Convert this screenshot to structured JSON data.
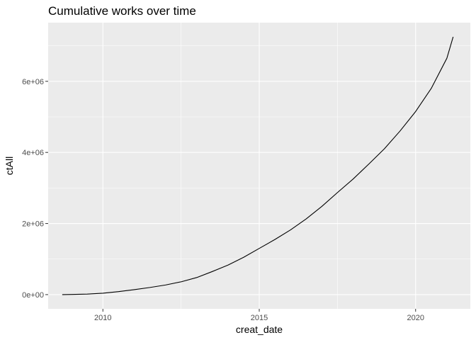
{
  "chart_data": {
    "type": "line",
    "title": "Cumulative works over time",
    "xlabel": "creat_date",
    "ylabel": "ctAll",
    "xlim": [
      2008.25,
      2021.75
    ],
    "ylim": [
      -400000,
      7650000
    ],
    "x_ticks": [
      {
        "value": 2010,
        "label": "2010"
      },
      {
        "value": 2015,
        "label": "2015"
      },
      {
        "value": 2020,
        "label": "2020"
      }
    ],
    "y_ticks": [
      {
        "value": 0,
        "label": "0e+00"
      },
      {
        "value": 2000000,
        "label": "2e+06"
      },
      {
        "value": 4000000,
        "label": "4e+06"
      },
      {
        "value": 6000000,
        "label": "6e+06"
      }
    ],
    "grid": true,
    "background": "#EBEBEB",
    "gridline_color": "#FFFFFF",
    "line_color": "#000000",
    "series": [
      {
        "x": [
          2008.7,
          2009.0,
          2009.5,
          2010.0,
          2010.5,
          2011.0,
          2011.5,
          2012.0,
          2012.5,
          2013.0,
          2013.5,
          2014.0,
          2014.5,
          2015.0,
          2015.5,
          2016.0,
          2016.5,
          2017.0,
          2017.5,
          2018.0,
          2018.5,
          2019.0,
          2019.5,
          2020.0,
          2020.5,
          2021.0,
          2021.2
        ],
        "y": [
          0,
          5000,
          15000,
          40000,
          85000,
          140000,
          200000,
          270000,
          360000,
          480000,
          650000,
          830000,
          1050000,
          1300000,
          1550000,
          1820000,
          2130000,
          2480000,
          2870000,
          3250000,
          3670000,
          4100000,
          4600000,
          5150000,
          5800000,
          6650000,
          7250000
        ]
      }
    ]
  }
}
